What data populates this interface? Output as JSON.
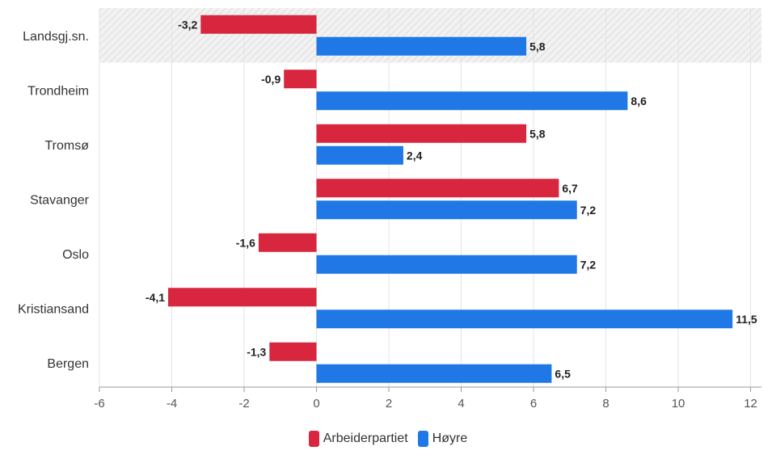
{
  "chart_data": {
    "type": "bar",
    "orientation": "horizontal",
    "categories": [
      "Landsgj.sn.",
      "Trondheim",
      "Tromsø",
      "Stavanger",
      "Oslo",
      "Kristiansand",
      "Bergen"
    ],
    "series": [
      {
        "name": "Arbeiderpartiet",
        "color": "#d7263d",
        "values": [
          -3.2,
          -0.9,
          5.8,
          6.7,
          -1.6,
          -4.1,
          -1.3
        ],
        "labels": [
          "-3,2",
          "-0,9",
          "5,8",
          "6,7",
          "-1,6",
          "-4,1",
          "-1,3"
        ]
      },
      {
        "name": "Høyre",
        "color": "#1f78e6",
        "values": [
          5.8,
          8.6,
          2.4,
          7.2,
          7.2,
          11.5,
          6.5
        ],
        "labels": [
          "5,8",
          "8,6",
          "2,4",
          "7,2",
          "7,2",
          "11,5",
          "6,5"
        ]
      }
    ],
    "xlim": [
      -6,
      12.3
    ],
    "xticks": [
      -6,
      -4,
      -2,
      0,
      2,
      4,
      6,
      8,
      10,
      12
    ],
    "xtick_labels": [
      "-6",
      "-4",
      "-2",
      "0",
      "2",
      "4",
      "6",
      "8",
      "10",
      "12"
    ],
    "highlighted_category": "Landsgj.sn.",
    "grid": true,
    "legend_position": "bottom-center",
    "title": "",
    "xlabel": "",
    "ylabel": ""
  }
}
